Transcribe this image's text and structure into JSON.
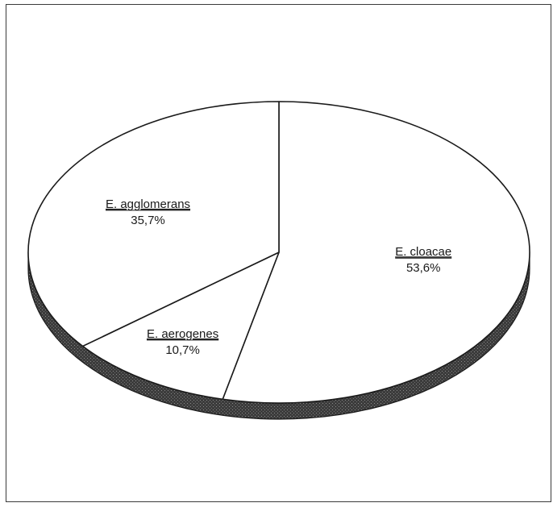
{
  "chart_data": {
    "type": "pie",
    "title": "",
    "style": "3d-tilted",
    "slices": [
      {
        "label": "E. cloacae",
        "value": 53.6,
        "value_label": "53,6%"
      },
      {
        "label": "E. aerogenes",
        "value": 10.7,
        "value_label": "10,7%"
      },
      {
        "label": "E. agglomerans",
        "value": 35.7,
        "value_label": "35,7%"
      }
    ],
    "colors": {
      "slice_fill": "#ffffff",
      "outline": "#1a1a1a",
      "rim": "#3c3c3c",
      "frame": "#3a3a3a"
    }
  }
}
